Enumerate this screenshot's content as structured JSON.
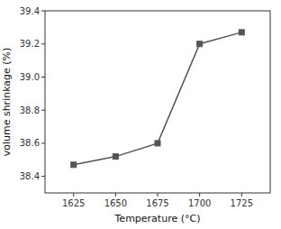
{
  "chart_data": {
    "type": "line",
    "x": [
      1625,
      1650,
      1675,
      1700,
      1725
    ],
    "values": [
      38.47,
      38.52,
      38.6,
      39.2,
      39.27
    ],
    "xlabel": "Temperature (°C)",
    "ylabel": "volume shrinkage (%)",
    "xlim": [
      1608,
      1742
    ],
    "ylim": [
      38.3,
      39.4
    ],
    "xticks": [
      1625,
      1650,
      1675,
      1700,
      1725
    ],
    "yticks": [
      38.4,
      38.6,
      38.8,
      {
        "value": 39.0,
        "label": "39.0"
      },
      39.2,
      39.4
    ],
    "color": "#555555",
    "marker": "square"
  }
}
